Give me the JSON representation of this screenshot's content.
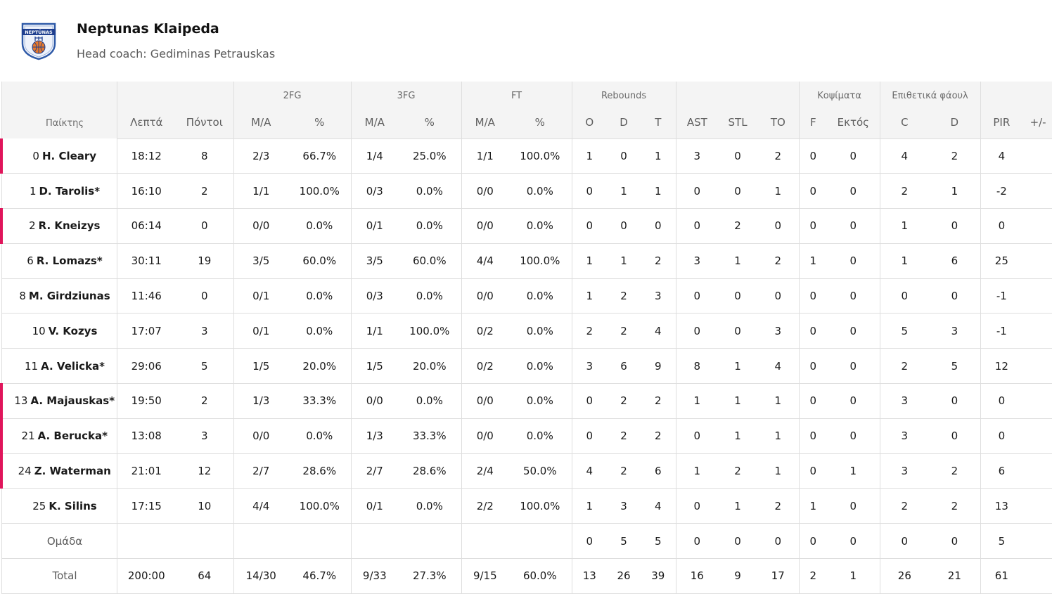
{
  "team": {
    "name": "Neptunas Klaipeda",
    "coach": "Head coach: Gediminas Petrauskas",
    "logo_text": "NEPTŪNAS"
  },
  "headers": {
    "groups": {
      "fg2": "2FG",
      "fg3": "3FG",
      "ft": "FT",
      "reb": "Rebounds",
      "blk": "Κοψίματα",
      "fouls": "Επιθετικά φάουλ"
    },
    "player": "Παίκτης",
    "min": "Λεπτά",
    "pts": "Πόντοι",
    "ma": "M/A",
    "pct": "%",
    "o": "O",
    "d": "D",
    "t": "T",
    "ast": "AST",
    "stl": "STL",
    "to": "TO",
    "f": "F",
    "ext": "Εκτός",
    "c": "C",
    "fd": "D",
    "pir": "PIR",
    "pm": "+/-"
  },
  "players": [
    {
      "num": "0",
      "name": "H. Cleary",
      "min": "18:12",
      "pts": "8",
      "fg2": "2/3",
      "fg2p": "66.7%",
      "fg3": "1/4",
      "fg3p": "25.0%",
      "ft": "1/1",
      "ftp": "100.0%",
      "o": "1",
      "d": "0",
      "t": "1",
      "ast": "3",
      "stl": "0",
      "to": "2",
      "f": "0",
      "ext": "0",
      "c": "4",
      "fd": "2",
      "pir": "4",
      "pm": ""
    },
    {
      "num": "1",
      "name": "D. Tarolis*",
      "min": "16:10",
      "pts": "2",
      "fg2": "1/1",
      "fg2p": "100.0%",
      "fg3": "0/3",
      "fg3p": "0.0%",
      "ft": "0/0",
      "ftp": "0.0%",
      "o": "0",
      "d": "1",
      "t": "1",
      "ast": "0",
      "stl": "0",
      "to": "1",
      "f": "0",
      "ext": "0",
      "c": "2",
      "fd": "1",
      "pir": "-2",
      "pm": ""
    },
    {
      "num": "2",
      "name": "R. Kneizys",
      "min": "06:14",
      "pts": "0",
      "fg2": "0/0",
      "fg2p": "0.0%",
      "fg3": "0/1",
      "fg3p": "0.0%",
      "ft": "0/0",
      "ftp": "0.0%",
      "o": "0",
      "d": "0",
      "t": "0",
      "ast": "0",
      "stl": "2",
      "to": "0",
      "f": "0",
      "ext": "0",
      "c": "1",
      "fd": "0",
      "pir": "0",
      "pm": ""
    },
    {
      "num": "6",
      "name": "R. Lomazs*",
      "min": "30:11",
      "pts": "19",
      "fg2": "3/5",
      "fg2p": "60.0%",
      "fg3": "3/5",
      "fg3p": "60.0%",
      "ft": "4/4",
      "ftp": "100.0%",
      "o": "1",
      "d": "1",
      "t": "2",
      "ast": "3",
      "stl": "1",
      "to": "2",
      "f": "1",
      "ext": "0",
      "c": "1",
      "fd": "6",
      "pir": "25",
      "pm": ""
    },
    {
      "num": "8",
      "name": "M. Girdziunas",
      "min": "11:46",
      "pts": "0",
      "fg2": "0/1",
      "fg2p": "0.0%",
      "fg3": "0/3",
      "fg3p": "0.0%",
      "ft": "0/0",
      "ftp": "0.0%",
      "o": "1",
      "d": "2",
      "t": "3",
      "ast": "0",
      "stl": "0",
      "to": "0",
      "f": "0",
      "ext": "0",
      "c": "0",
      "fd": "0",
      "pir": "-1",
      "pm": ""
    },
    {
      "num": "10",
      "name": "V. Kozys",
      "min": "17:07",
      "pts": "3",
      "fg2": "0/1",
      "fg2p": "0.0%",
      "fg3": "1/1",
      "fg3p": "100.0%",
      "ft": "0/2",
      "ftp": "0.0%",
      "o": "2",
      "d": "2",
      "t": "4",
      "ast": "0",
      "stl": "0",
      "to": "3",
      "f": "0",
      "ext": "0",
      "c": "5",
      "fd": "3",
      "pir": "-1",
      "pm": ""
    },
    {
      "num": "11",
      "name": "A. Velicka*",
      "min": "29:06",
      "pts": "5",
      "fg2": "1/5",
      "fg2p": "20.0%",
      "fg3": "1/5",
      "fg3p": "20.0%",
      "ft": "0/2",
      "ftp": "0.0%",
      "o": "3",
      "d": "6",
      "t": "9",
      "ast": "8",
      "stl": "1",
      "to": "4",
      "f": "0",
      "ext": "0",
      "c": "2",
      "fd": "5",
      "pir": "12",
      "pm": ""
    },
    {
      "num": "13",
      "name": "A. Majauskas*",
      "min": "19:50",
      "pts": "2",
      "fg2": "1/3",
      "fg2p": "33.3%",
      "fg3": "0/0",
      "fg3p": "0.0%",
      "ft": "0/0",
      "ftp": "0.0%",
      "o": "0",
      "d": "2",
      "t": "2",
      "ast": "1",
      "stl": "1",
      "to": "1",
      "f": "0",
      "ext": "0",
      "c": "3",
      "fd": "0",
      "pir": "0",
      "pm": ""
    },
    {
      "num": "21",
      "name": "A. Berucka*",
      "min": "13:08",
      "pts": "3",
      "fg2": "0/0",
      "fg2p": "0.0%",
      "fg3": "1/3",
      "fg3p": "33.3%",
      "ft": "0/0",
      "ftp": "0.0%",
      "o": "0",
      "d": "2",
      "t": "2",
      "ast": "0",
      "stl": "1",
      "to": "1",
      "f": "0",
      "ext": "0",
      "c": "3",
      "fd": "0",
      "pir": "0",
      "pm": ""
    },
    {
      "num": "24",
      "name": "Z. Waterman",
      "min": "21:01",
      "pts": "12",
      "fg2": "2/7",
      "fg2p": "28.6%",
      "fg3": "2/7",
      "fg3p": "28.6%",
      "ft": "2/4",
      "ftp": "50.0%",
      "o": "4",
      "d": "2",
      "t": "6",
      "ast": "1",
      "stl": "2",
      "to": "1",
      "f": "0",
      "ext": "1",
      "c": "3",
      "fd": "2",
      "pir": "6",
      "pm": ""
    },
    {
      "num": "25",
      "name": "K. Silins",
      "min": "17:15",
      "pts": "10",
      "fg2": "4/4",
      "fg2p": "100.0%",
      "fg3": "0/1",
      "fg3p": "0.0%",
      "ft": "2/2",
      "ftp": "100.0%",
      "o": "1",
      "d": "3",
      "t": "4",
      "ast": "0",
      "stl": "1",
      "to": "2",
      "f": "1",
      "ext": "0",
      "c": "2",
      "fd": "2",
      "pir": "13",
      "pm": ""
    }
  ],
  "team_row": {
    "label": "Ομάδα",
    "min": "",
    "pts": "",
    "fg2": "",
    "fg2p": "",
    "fg3": "",
    "fg3p": "",
    "ft": "",
    "ftp": "",
    "o": "0",
    "d": "5",
    "t": "5",
    "ast": "0",
    "stl": "0",
    "to": "0",
    "f": "0",
    "ext": "0",
    "c": "0",
    "fd": "0",
    "pir": "5",
    "pm": ""
  },
  "total_row": {
    "label": "Total",
    "min": "200:00",
    "pts": "64",
    "fg2": "14/30",
    "fg2p": "46.7%",
    "fg3": "9/33",
    "fg3p": "27.3%",
    "ft": "9/15",
    "ftp": "60.0%",
    "o": "13",
    "d": "26",
    "t": "39",
    "ast": "16",
    "stl": "9",
    "to": "17",
    "f": "2",
    "ext": "1",
    "c": "26",
    "fd": "21",
    "pir": "61",
    "pm": ""
  },
  "colors": {
    "starter_marker": "#e0155b",
    "header_bg": "#f4f4f4",
    "border": "#dedede"
  }
}
